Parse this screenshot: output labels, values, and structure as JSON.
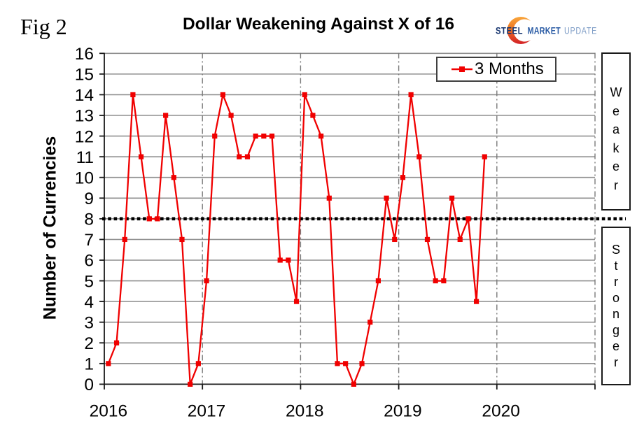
{
  "figure": {
    "fig_label": "Fig 2",
    "title": "Dollar Weakening Against X of 16",
    "background_color": "#ffffff"
  },
  "logo": {
    "steel": "STEEL",
    "market": "MARKET",
    "update": "UPDATE",
    "steel_color": "#17356f",
    "market_color": "#2b5ca5",
    "update_color": "#7d9cc6",
    "swoosh_top_color": "#f9a73d",
    "swoosh_mid_color": "#ee7423",
    "swoosh_bottom_color": "#d31f26"
  },
  "legend": {
    "label": "3 Months",
    "position": "top-right"
  },
  "annotations": {
    "upper_label": "Weaker",
    "lower_label": "Stronger"
  },
  "chart_data": {
    "type": "line",
    "title": "Dollar Weakening Against X of 16",
    "xlabel": "",
    "ylabel": "Number of Currencies",
    "ylim": [
      0,
      16
    ],
    "xlim_years": [
      2016,
      2021
    ],
    "grid": true,
    "legend_position": "top-right",
    "yticks": [
      0,
      1,
      2,
      3,
      4,
      5,
      6,
      7,
      8,
      9,
      10,
      11,
      12,
      13,
      14,
      15,
      16
    ],
    "xticks": [
      "2016",
      "2017",
      "2018",
      "2019",
      "2020"
    ],
    "x_months": [
      "2016-01",
      "2016-02",
      "2016-03",
      "2016-04",
      "2016-05",
      "2016-06",
      "2016-07",
      "2016-08",
      "2016-09",
      "2016-10",
      "2016-11",
      "2016-12",
      "2017-01",
      "2017-02",
      "2017-03",
      "2017-04",
      "2017-05",
      "2017-06",
      "2017-07",
      "2017-08",
      "2017-09",
      "2017-10",
      "2017-11",
      "2017-12",
      "2018-01",
      "2018-02",
      "2018-03",
      "2018-04",
      "2018-05",
      "2018-06",
      "2018-07",
      "2018-08",
      "2018-09",
      "2018-10",
      "2018-11",
      "2018-12",
      "2019-01",
      "2019-02",
      "2019-03",
      "2019-04",
      "2019-05",
      "2019-06",
      "2019-07",
      "2019-08",
      "2019-09",
      "2019-10",
      "2019-11"
    ],
    "series": [
      {
        "name": "3 Months",
        "color": "#f00000",
        "marker": "square",
        "values": [
          1,
          2,
          7,
          14,
          11,
          8,
          8,
          13,
          10,
          7,
          0,
          1,
          5,
          12,
          14,
          13,
          11,
          11,
          12,
          12,
          12,
          6,
          6,
          4,
          14,
          13,
          12,
          9,
          1,
          1,
          0,
          1,
          3,
          5,
          9,
          7,
          10,
          14,
          11,
          7,
          5,
          5,
          9,
          7,
          8,
          4,
          11
        ]
      }
    ],
    "reference_line": {
      "value": 8,
      "style": "dotted",
      "color": "#000000",
      "label_above": "Weaker",
      "label_below": "Stronger"
    },
    "gridline_color": "#8f8f8f",
    "year_gridline_style": "dash-dot"
  }
}
